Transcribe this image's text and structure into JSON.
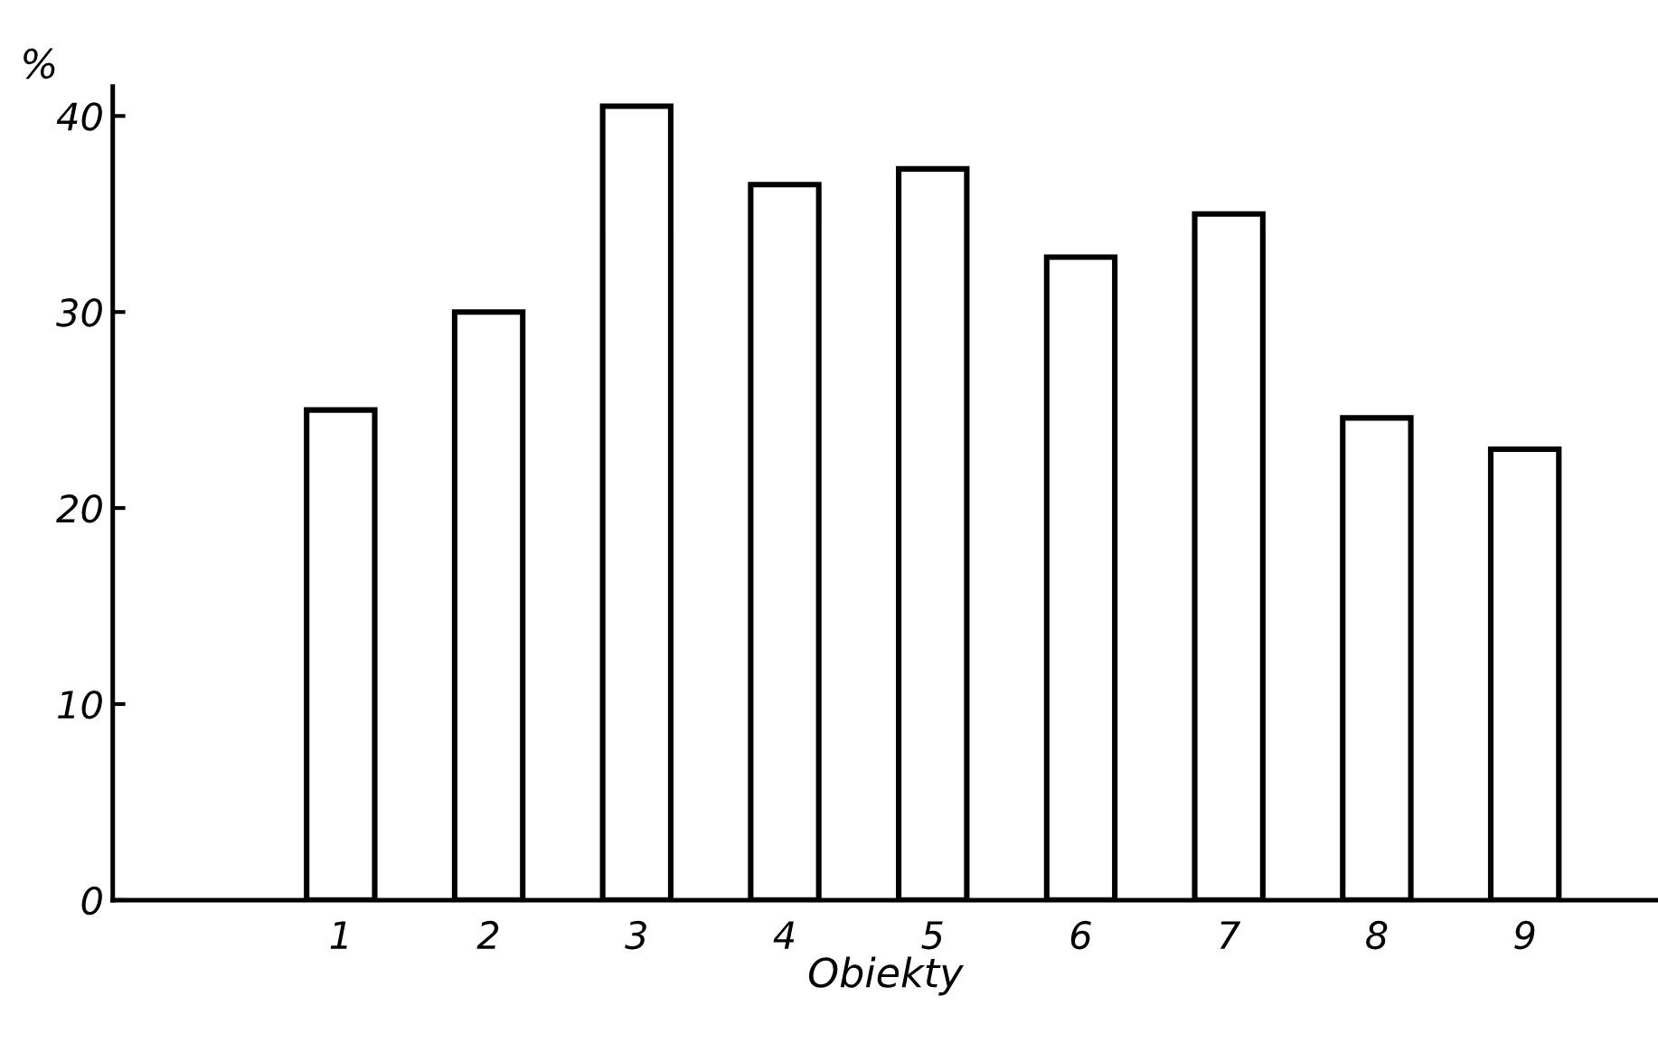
{
  "chart_data": {
    "type": "bar",
    "ylabel": "%",
    "xlabel": "Obiekty",
    "categories": [
      "1",
      "2",
      "3",
      "4",
      "5",
      "6",
      "7",
      "8",
      "9"
    ],
    "values": [
      25,
      30,
      40.5,
      36.5,
      37.3,
      32.8,
      35,
      24.6,
      23
    ],
    "color": "#ffffff",
    "ylim": [
      0,
      41.5
    ],
    "yticks": [
      0,
      10,
      20,
      30,
      40
    ],
    "grid": false
  }
}
